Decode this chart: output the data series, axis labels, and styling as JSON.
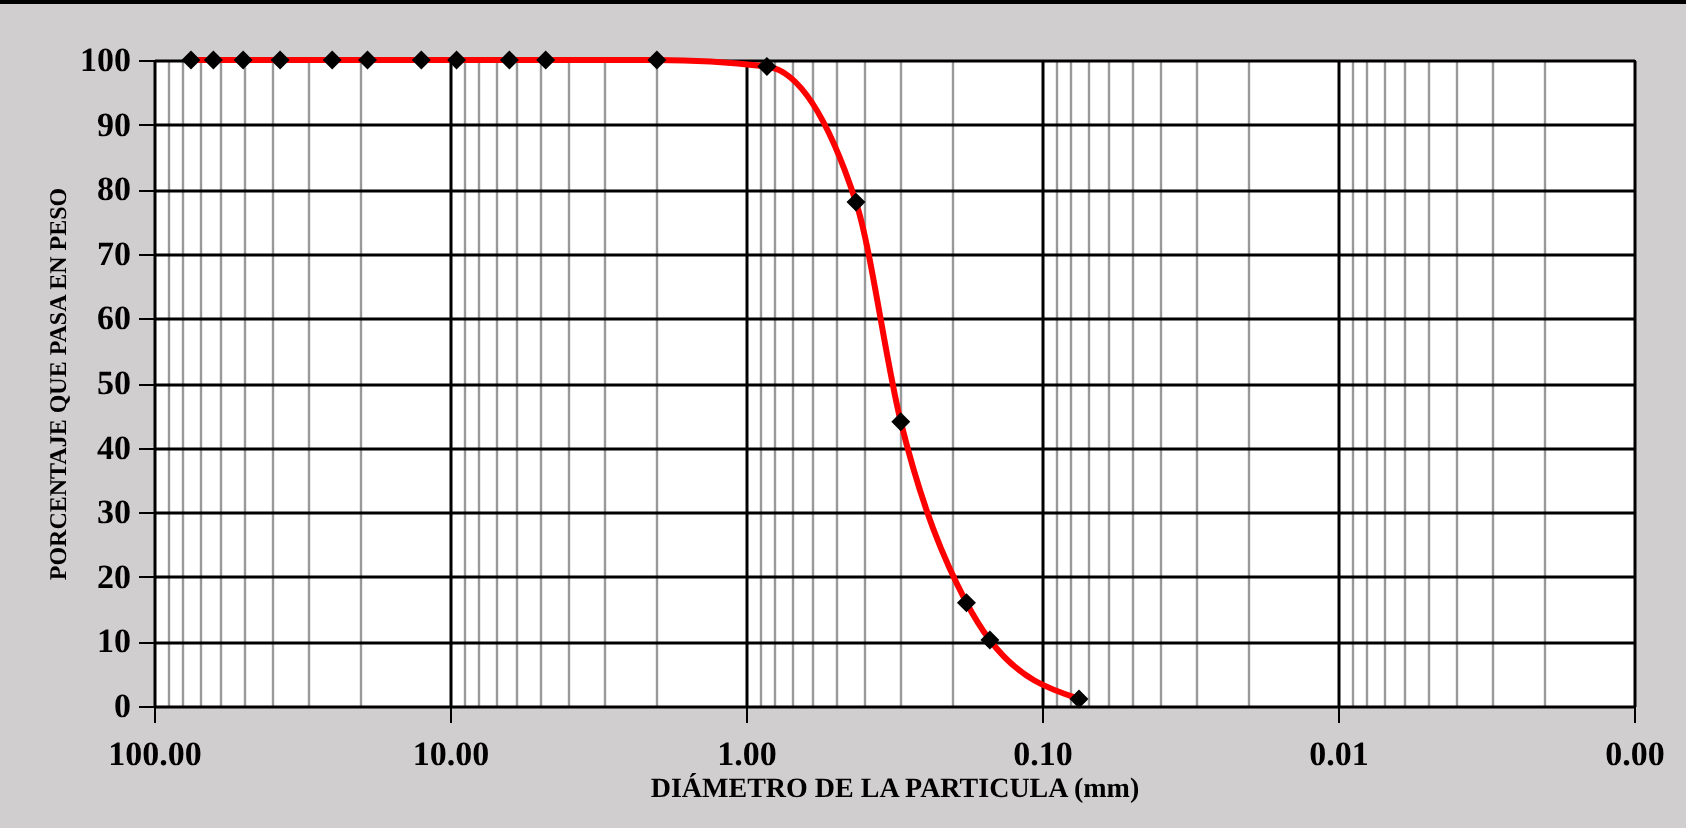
{
  "chart_data": {
    "type": "line",
    "xlabel": "DIÁMETRO DE LA PARTICULA (mm)",
    "ylabel": "PORCENTAJE QUE PASA EN PESO",
    "x": [
      75,
      63,
      50,
      37.5,
      25,
      19,
      12.5,
      9.5,
      6.3,
      4.75,
      2,
      0.85,
      0.425,
      0.3,
      0.18,
      0.15,
      0.075
    ],
    "series": [
      {
        "type": "line",
        "color": "#ff0000",
        "marker": "none",
        "values": [
          100,
          100,
          100,
          100,
          100,
          100,
          100,
          100,
          100,
          100,
          100,
          99,
          78,
          44,
          16,
          10.2,
          1.1
        ]
      },
      {
        "type": "scatter",
        "color": "#000000",
        "marker": "diamond",
        "values": [
          100,
          100,
          100,
          100,
          100,
          100,
          100,
          100,
          100,
          100,
          100,
          99,
          78,
          44,
          16,
          10.2,
          1.1
        ]
      }
    ],
    "log": "x",
    "xlim": [
      100,
      0.001
    ],
    "xticks": [
      {
        "value": 100,
        "label": "100.00"
      },
      {
        "value": 90,
        "label": null
      },
      {
        "value": 80,
        "label": null
      },
      {
        "value": 70,
        "label": null
      },
      {
        "value": 60,
        "label": null
      },
      {
        "value": 50,
        "label": null
      },
      {
        "value": 40,
        "label": null
      },
      {
        "value": 30,
        "label": null
      },
      {
        "value": 20,
        "label": null
      },
      {
        "value": 10,
        "label": "10.00"
      },
      {
        "value": 9,
        "label": null
      },
      {
        "value": 8,
        "label": null
      },
      {
        "value": 7,
        "label": null
      },
      {
        "value": 6,
        "label": null
      },
      {
        "value": 5,
        "label": null
      },
      {
        "value": 4,
        "label": null
      },
      {
        "value": 3,
        "label": null
      },
      {
        "value": 2,
        "label": null
      },
      {
        "value": 1,
        "label": "1.00"
      },
      {
        "value": 0.9,
        "label": null
      },
      {
        "value": 0.8,
        "label": null
      },
      {
        "value": 0.7,
        "label": null
      },
      {
        "value": 0.6,
        "label": null
      },
      {
        "value": 0.5,
        "label": null
      },
      {
        "value": 0.4,
        "label": null
      },
      {
        "value": 0.3,
        "label": null
      },
      {
        "value": 0.2,
        "label": null
      },
      {
        "value": 0.1,
        "label": "0.10"
      },
      {
        "value": 0.09,
        "label": null
      },
      {
        "value": 0.08,
        "label": null
      },
      {
        "value": 0.07,
        "label": null
      },
      {
        "value": 0.06,
        "label": null
      },
      {
        "value": 0.05,
        "label": null
      },
      {
        "value": 0.04,
        "label": null
      },
      {
        "value": 0.03,
        "label": null
      },
      {
        "value": 0.02,
        "label": null
      },
      {
        "value": 0.01,
        "label": "0.01"
      },
      {
        "value": 0.009,
        "label": null
      },
      {
        "value": 0.008,
        "label": null
      },
      {
        "value": 0.007,
        "label": null
      },
      {
        "value": 0.006,
        "label": null
      },
      {
        "value": 0.005,
        "label": null
      },
      {
        "value": 0.004,
        "label": null
      },
      {
        "value": 0.003,
        "label": null
      },
      {
        "value": 0.002,
        "label": null
      },
      {
        "value": 0.001,
        "label": "0.00"
      }
    ],
    "ylim": [
      0,
      100
    ],
    "yticks": [
      0,
      10,
      20,
      30,
      40,
      50,
      60,
      70,
      80,
      90,
      100
    ],
    "grid": true,
    "line_style": "solid"
  }
}
